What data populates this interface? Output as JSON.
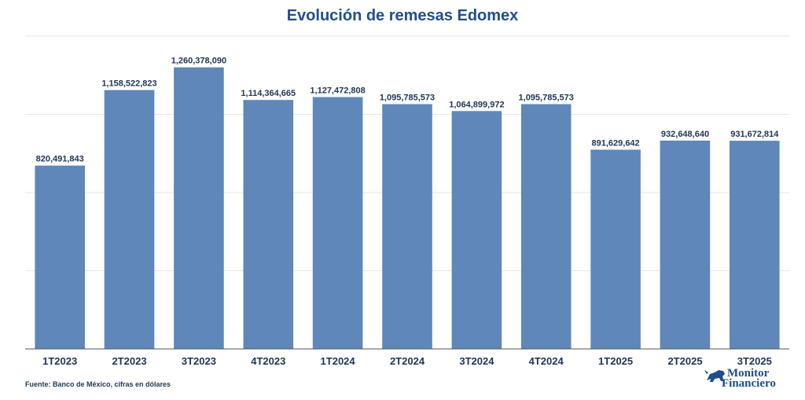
{
  "chart_data": {
    "type": "bar",
    "title": "Evolución de remesas Edomex",
    "categories": [
      "1T2023",
      "2T2023",
      "3T2023",
      "4T2023",
      "1T2024",
      "2T2024",
      "3T2024",
      "4T2024",
      "1T2025",
      "2T2025",
      "3T2025"
    ],
    "values": [
      820491843,
      1158522823,
      1260378090,
      1114364665,
      1127472808,
      1095785573,
      1064899972,
      1095785573,
      891629642,
      932648640,
      931672814
    ],
    "value_labels": [
      "820,491,843",
      "1,158,522,823",
      "1,260,378,090",
      "1,114,364,665",
      "1,127,472,808",
      "1,095,785,573",
      "1,064,899,972",
      "1,095,785,573",
      "891,629,642",
      "932,648,640",
      "931,672,814"
    ],
    "ylim": [
      0,
      1400000000
    ],
    "grid": true,
    "legend": "none"
  },
  "footer": {
    "source": "Fuente: Banco de México, cifras en dólares"
  },
  "logo": {
    "line1": "Monitor",
    "line2": "Financiero"
  },
  "colors": {
    "bar": "#5f87b9",
    "title": "#1f4e8c",
    "text": "#1f3553",
    "grid": "#e6e6e6",
    "axis": "#555555"
  }
}
